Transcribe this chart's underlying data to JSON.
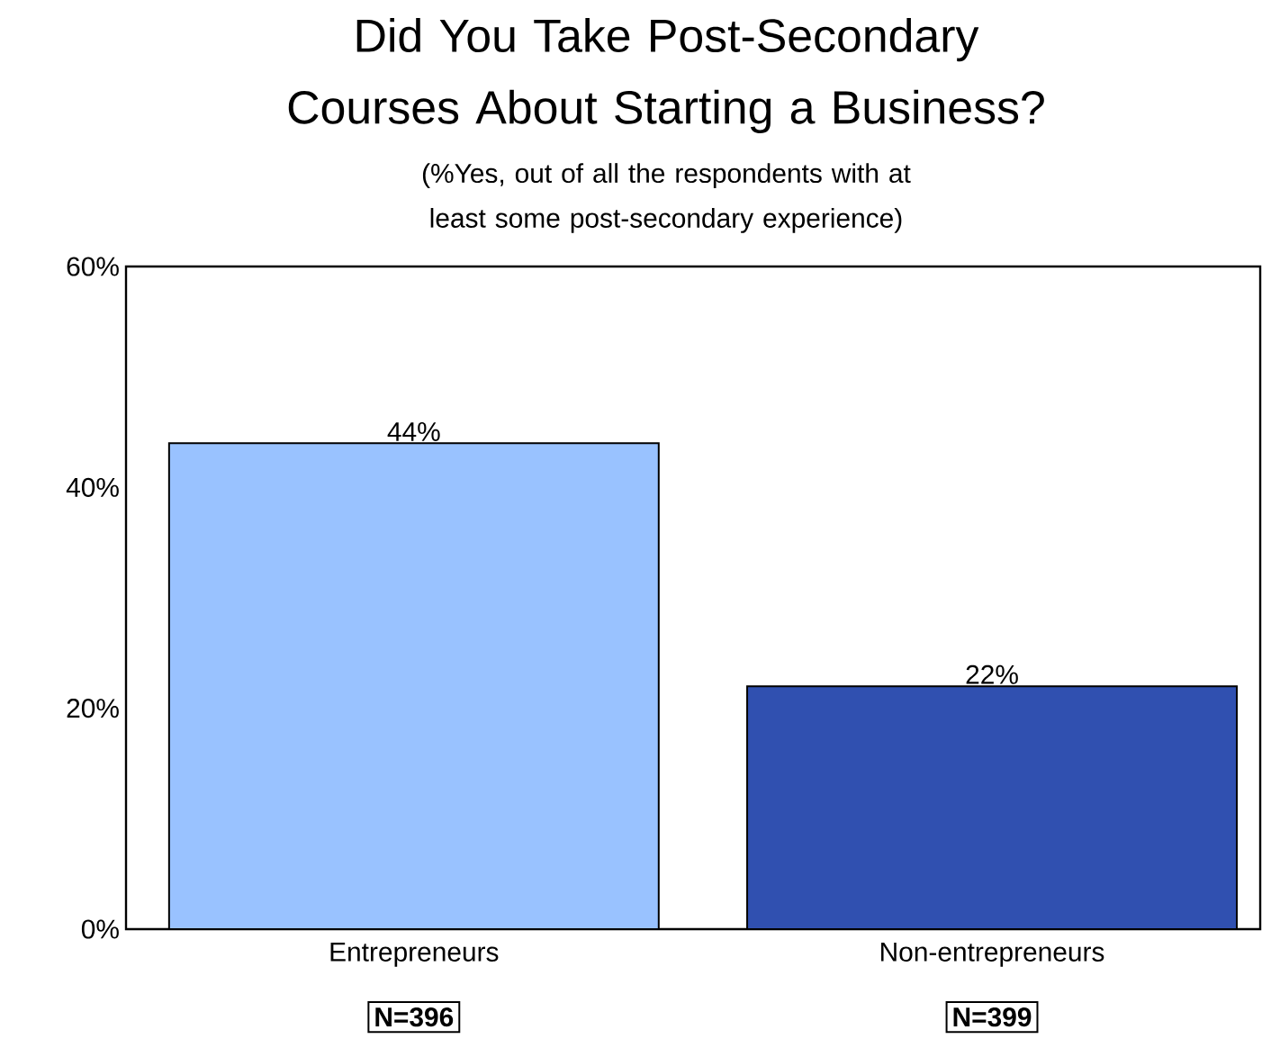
{
  "chart_data": {
    "type": "bar",
    "title": "Did You Take Post-Secondary Courses About Starting a Business?",
    "subtitle": "(%Yes, out of all the respondents with at least some post-secondary experience)",
    "categories": [
      "Entrepreneurs",
      "Non-entrepreneurs"
    ],
    "values": [
      44,
      22
    ],
    "colors": [
      "#99c2ff",
      "#3050b0"
    ],
    "value_labels": [
      "44%",
      "22%"
    ],
    "annotations": [
      "N=396",
      "N=399"
    ],
    "ylim": [
      0,
      60
    ],
    "yticks": [
      {
        "value": 0,
        "label": "0%"
      },
      {
        "value": 20,
        "label": "20%"
      },
      {
        "value": 40,
        "label": "40%"
      },
      {
        "value": 60,
        "label": "60%"
      }
    ],
    "grid": false
  }
}
